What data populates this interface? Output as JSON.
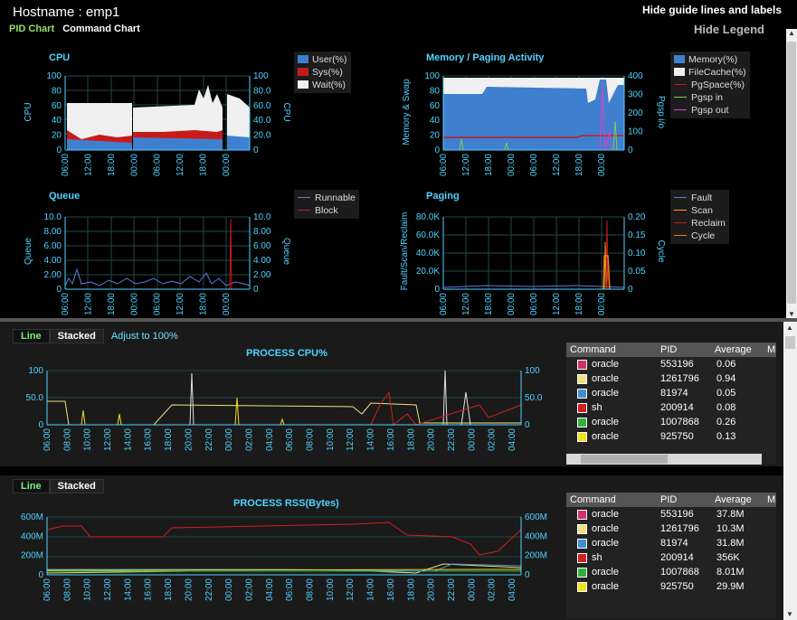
{
  "header": {
    "hostname_label": "Hostname : emp1",
    "tab_pid": "PID Chart",
    "tab_command": "Command Chart",
    "hide_guide": "Hide guide lines and labels",
    "hide_legend": "Hide Legend"
  },
  "xticks": [
    "06:00",
    "12:00",
    "18:00",
    "00:00",
    "06:00",
    "12:00",
    "18:00",
    "00:00"
  ],
  "charts": {
    "cpu": {
      "title": "CPU",
      "ylabel_left": "CPU",
      "ylabel_right": "CPU",
      "yticks_left": [
        "100",
        "80",
        "60",
        "40",
        "20",
        "0"
      ],
      "yticks_right": [
        "100",
        "80.0",
        "60.0",
        "40.0",
        "20.0",
        "0"
      ],
      "legend": [
        {
          "label": "User(%)",
          "color": "#3f7fd0"
        },
        {
          "label": "Sys(%)",
          "color": "#c81a1a"
        },
        {
          "label": "Wait(%)",
          "color": "#f0f0f0"
        }
      ]
    },
    "memory": {
      "title": "Memory / Paging Activity",
      "ylabel_left": "Memory & Swap",
      "ylabel_right": "Pgsp i/o",
      "yticks_left": [
        "100",
        "80",
        "60",
        "40",
        "20",
        "0"
      ],
      "yticks_right": [
        "400",
        "300",
        "200",
        "100",
        "0"
      ],
      "legend": [
        {
          "label": "Memory(%)",
          "color": "#3f7fd0",
          "kind": "box"
        },
        {
          "label": "FileCache(%)",
          "color": "#f0f0f0",
          "kind": "box"
        },
        {
          "label": "PgSpace(%)",
          "color": "#c81a1a",
          "kind": "line"
        },
        {
          "label": "Pgsp in",
          "color": "#7fd04a",
          "kind": "line"
        },
        {
          "label": "Pgsp out",
          "color": "#e040c0",
          "kind": "line"
        }
      ]
    },
    "queue": {
      "title": "Queue",
      "ylabel_left": "Queue",
      "ylabel_right": "Queue",
      "yticks_left": [
        "10.0",
        "8.00",
        "6.00",
        "4.00",
        "2.00",
        "0"
      ],
      "yticks_right": [
        "10.0",
        "8.00",
        "6.00",
        "4.00",
        "2.00",
        "0"
      ],
      "legend": [
        {
          "label": "Runnable",
          "color": "#5b7fd8",
          "kind": "line"
        },
        {
          "label": "Block",
          "color": "#c81a1a",
          "kind": "line"
        }
      ]
    },
    "paging": {
      "title": "Paging",
      "ylabel_left": "Fault/Scan/Reclaim",
      "ylabel_right": "Cycle",
      "yticks_left": [
        "80.0K",
        "60.0K",
        "40.0K",
        "20.0K",
        "0"
      ],
      "yticks_right": [
        "0.20",
        "0.15",
        "0.10",
        "0.05",
        "0"
      ],
      "legend": [
        {
          "label": "Fault",
          "color": "#5b7fd8",
          "kind": "line"
        },
        {
          "label": "Scan",
          "color": "#f0a020",
          "kind": "line"
        },
        {
          "label": "Reclaim",
          "color": "#c81a1a",
          "kind": "line"
        },
        {
          "label": "Cycle",
          "color": "#f07a20",
          "kind": "line"
        }
      ]
    }
  },
  "process_cpu": {
    "tab_line": "Line",
    "tab_stacked": "Stacked",
    "adjust": "Adjust to 100%",
    "title": "PROCESS CPU%",
    "yticks": [
      "100",
      "50.0",
      "0"
    ],
    "xticks": [
      "06:00",
      "08:00",
      "10:00",
      "12:00",
      "14:00",
      "16:00",
      "18:00",
      "20:00",
      "22:00",
      "00:00",
      "02:00",
      "04:00",
      "06:00",
      "08:00",
      "10:00",
      "12:00",
      "14:00",
      "16:00",
      "18:00",
      "20:00",
      "22:00",
      "00:00",
      "02:00",
      "04:00"
    ],
    "table": {
      "headers": [
        "Command",
        "PID",
        "Average",
        "M"
      ],
      "rows": [
        {
          "color": "#d0306a",
          "command": "oracle",
          "pid": "553196",
          "avg": "0.06"
        },
        {
          "color": "#f0e080",
          "command": "oracle",
          "pid": "1261796",
          "avg": "0.94"
        },
        {
          "color": "#4090d0",
          "command": "oracle",
          "pid": "81974",
          "avg": "0.05"
        },
        {
          "color": "#d02020",
          "command": "sh",
          "pid": "200914",
          "avg": "0.08"
        },
        {
          "color": "#30b040",
          "command": "oracle",
          "pid": "1007868",
          "avg": "0.26"
        },
        {
          "color": "#f0e020",
          "command": "oracle",
          "pid": "925750",
          "avg": "0.13"
        }
      ]
    }
  },
  "process_rss": {
    "tab_line": "Line",
    "tab_stacked": "Stacked",
    "title": "PROCESS RSS(Bytes)",
    "yticks": [
      "600M",
      "400M",
      "200M",
      "0"
    ],
    "table": {
      "headers": [
        "Command",
        "PID",
        "Average",
        "M"
      ],
      "rows": [
        {
          "color": "#d0306a",
          "command": "oracle",
          "pid": "553196",
          "avg": "37.8M"
        },
        {
          "color": "#f0e080",
          "command": "oracle",
          "pid": "1261796",
          "avg": "10.3M"
        },
        {
          "color": "#4090d0",
          "command": "oracle",
          "pid": "81974",
          "avg": "31.8M"
        },
        {
          "color": "#d02020",
          "command": "sh",
          "pid": "200914",
          "avg": "356K"
        },
        {
          "color": "#30b040",
          "command": "oracle",
          "pid": "1007868",
          "avg": "8.01M"
        },
        {
          "color": "#f0e020",
          "command": "oracle",
          "pid": "925750",
          "avg": "29.9M"
        }
      ]
    }
  }
}
